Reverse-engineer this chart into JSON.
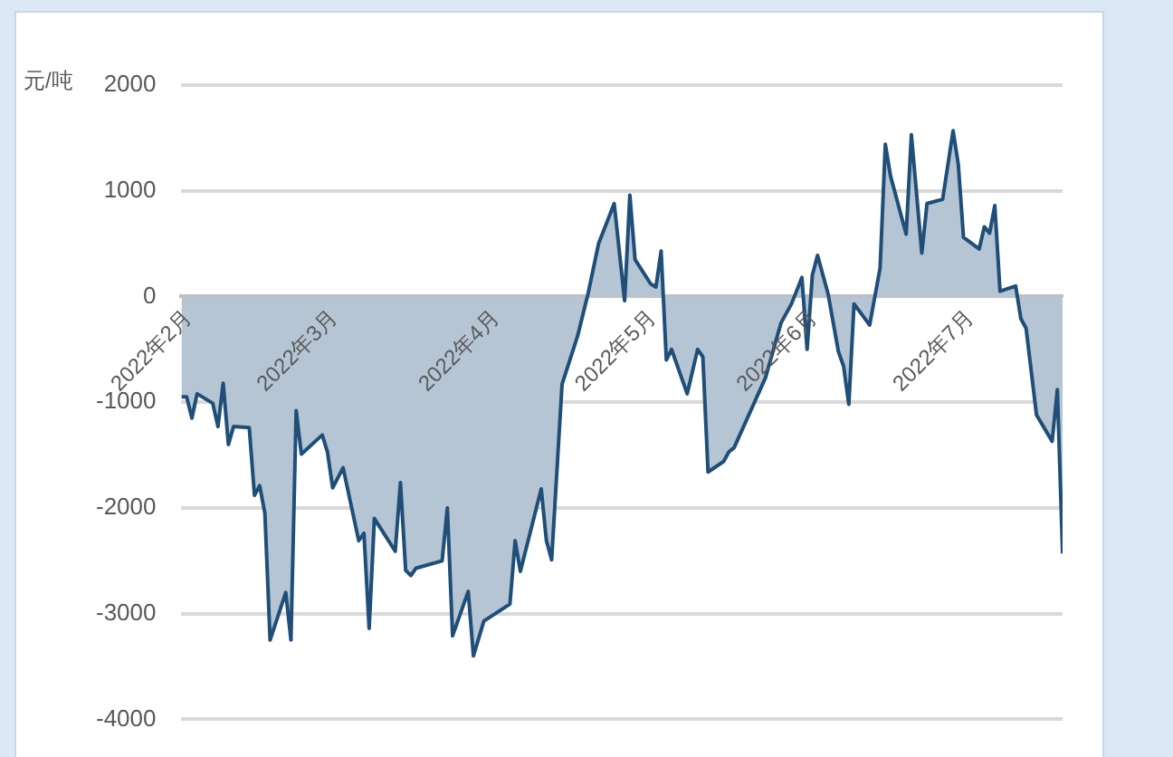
{
  "chart_data": {
    "type": "area",
    "ylabel": "元/吨",
    "x": [
      "2022-02-01",
      "2022-02-02",
      "2022-02-03",
      "2022-02-04",
      "2022-02-07",
      "2022-02-08",
      "2022-02-09",
      "2022-02-10",
      "2022-02-11",
      "2022-02-14",
      "2022-02-15",
      "2022-02-16",
      "2022-02-17",
      "2022-02-18",
      "2022-02-21",
      "2022-02-22",
      "2022-02-23",
      "2022-02-24",
      "2022-02-28",
      "2022-03-01",
      "2022-03-02",
      "2022-03-04",
      "2022-03-07",
      "2022-03-08",
      "2022-03-09",
      "2022-03-10",
      "2022-03-14",
      "2022-03-15",
      "2022-03-16",
      "2022-03-17",
      "2022-03-18",
      "2022-03-23",
      "2022-03-24",
      "2022-03-25",
      "2022-03-28",
      "2022-03-29",
      "2022-03-31",
      "2022-04-05",
      "2022-04-06",
      "2022-04-07",
      "2022-04-11",
      "2022-04-12",
      "2022-04-13",
      "2022-04-15",
      "2022-04-18",
      "2022-04-20",
      "2022-04-22",
      "2022-04-25",
      "2022-04-27",
      "2022-04-28",
      "2022-04-29",
      "2022-05-02",
      "2022-05-03",
      "2022-05-04",
      "2022-05-05",
      "2022-05-06",
      "2022-05-09",
      "2022-05-11",
      "2022-05-12",
      "2022-05-13",
      "2022-05-16",
      "2022-05-17",
      "2022-05-18",
      "2022-05-24",
      "2022-05-27",
      "2022-05-29",
      "2022-05-31",
      "2022-06-01",
      "2022-06-02",
      "2022-06-03",
      "2022-06-05",
      "2022-06-07",
      "2022-06-08",
      "2022-06-09",
      "2022-06-10",
      "2022-06-13",
      "2022-06-15",
      "2022-06-16",
      "2022-06-17",
      "2022-06-20",
      "2022-06-21",
      "2022-06-23",
      "2022-06-24",
      "2022-06-27",
      "2022-06-29",
      "2022-06-30",
      "2022-07-01",
      "2022-07-04",
      "2022-07-05",
      "2022-07-06",
      "2022-07-07",
      "2022-07-08",
      "2022-07-11",
      "2022-07-12",
      "2022-07-13",
      "2022-07-15",
      "2022-07-18",
      "2022-07-19",
      "2022-07-20"
    ],
    "series": [
      {
        "color": "#1f4e79",
        "values": [
          -950,
          -950,
          -1150,
          -920,
          -1010,
          -1230,
          -820,
          -1400,
          -1230,
          -1240,
          -1880,
          -1790,
          -2050,
          -3250,
          -2800,
          -3250,
          -1080,
          -1490,
          -1310,
          -1470,
          -1810,
          -1620,
          -2310,
          -2240,
          -3140,
          -2100,
          -2410,
          -1760,
          -2590,
          -2640,
          -2570,
          -2500,
          -2000,
          -3210,
          -2790,
          -3400,
          -3070,
          -2910,
          -2310,
          -2600,
          -1820,
          -2310,
          -2490,
          -830,
          -370,
          30,
          500,
          880,
          -40,
          960,
          350,
          120,
          90,
          430,
          -600,
          -500,
          -920,
          -500,
          -570,
          -1660,
          -1560,
          -1470,
          -1430,
          -770,
          -250,
          -70,
          180,
          -500,
          200,
          390,
          30,
          -520,
          -660,
          -1020,
          -70,
          -270,
          270,
          1440,
          1140,
          590,
          1530,
          410,
          880,
          920,
          1570,
          1250,
          560,
          450,
          660,
          600,
          860,
          50,
          100,
          -210,
          -300,
          -1120,
          -1370,
          -880,
          -2430
        ]
      }
    ],
    "xlim": [
      "2022-02-01",
      "2022-07-20"
    ],
    "xticks": [
      {
        "value": "2022-02-01",
        "label": "2022年2月"
      },
      {
        "value": "2022-03-01",
        "label": "2022年3月"
      },
      {
        "value": "2022-04-01",
        "label": "2022年4月"
      },
      {
        "value": "2022-05-01",
        "label": "2022年5月"
      },
      {
        "value": "2022-06-01",
        "label": "2022年6月"
      },
      {
        "value": "2022-07-01",
        "label": "2022年7月"
      }
    ],
    "ylim": [
      -4000,
      2000
    ],
    "yticks": [
      -4000,
      -3000,
      -2000,
      -1000,
      0,
      1000,
      2000
    ],
    "grid": "y",
    "legend": false,
    "marker": "none",
    "line_style": "solid"
  }
}
